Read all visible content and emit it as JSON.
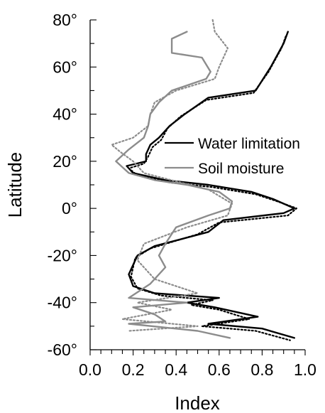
{
  "chart_data": {
    "type": "line",
    "orientation": "vertical-profile",
    "xlabel": "Index",
    "ylabel": "Latitude",
    "xlim": [
      0,
      1
    ],
    "ylim": [
      -60,
      80
    ],
    "x_ticks": [
      0.0,
      0.2,
      0.4,
      0.6,
      0.8,
      1.0
    ],
    "x_tick_labels": [
      "0.0",
      "0.2",
      "0.4",
      "0.6",
      "0.8",
      "1.0"
    ],
    "y_ticks": [
      80,
      60,
      40,
      20,
      0,
      -20,
      -40,
      -60
    ],
    "y_tick_labels": [
      "80°",
      "60°",
      "40°",
      "20°",
      "0°",
      "-20°",
      "-40°",
      "-60°"
    ],
    "grid": false,
    "legend": {
      "position": "middle",
      "entries": [
        "Water limitation",
        "Soil moisture"
      ]
    },
    "series": [
      {
        "name": "Water limitation",
        "color": "#000000",
        "dash": "solid",
        "points": [
          [
            0.92,
            75
          ],
          [
            0.9,
            70
          ],
          [
            0.84,
            60
          ],
          [
            0.77,
            50
          ],
          [
            0.55,
            47
          ],
          [
            0.44,
            40
          ],
          [
            0.37,
            35
          ],
          [
            0.32,
            30
          ],
          [
            0.28,
            27
          ],
          [
            0.26,
            23
          ],
          [
            0.26,
            20
          ],
          [
            0.17,
            18
          ],
          [
            0.2,
            15
          ],
          [
            0.35,
            12
          ],
          [
            0.55,
            10
          ],
          [
            0.75,
            7
          ],
          [
            0.85,
            4
          ],
          [
            0.95,
            0
          ],
          [
            0.9,
            -2
          ],
          [
            0.62,
            -5
          ],
          [
            0.55,
            -10
          ],
          [
            0.3,
            -16
          ],
          [
            0.22,
            -20
          ],
          [
            0.18,
            -28
          ],
          [
            0.2,
            -33
          ],
          [
            0.3,
            -36
          ],
          [
            0.6,
            -38
          ],
          [
            0.45,
            -40
          ],
          [
            0.58,
            -42
          ],
          [
            0.78,
            -46
          ],
          [
            0.55,
            -49
          ],
          [
            0.8,
            -51
          ],
          [
            0.95,
            -55
          ]
        ]
      },
      {
        "name": "Water limitation (dotted)",
        "color": "#000000",
        "dash": "dotted",
        "points": [
          [
            0.91,
            73
          ],
          [
            0.89,
            68
          ],
          [
            0.83,
            58
          ],
          [
            0.76,
            49
          ],
          [
            0.54,
            46
          ],
          [
            0.42,
            39
          ],
          [
            0.36,
            34
          ],
          [
            0.33,
            29
          ],
          [
            0.29,
            26
          ],
          [
            0.27,
            22
          ],
          [
            0.25,
            19
          ],
          [
            0.18,
            17
          ],
          [
            0.22,
            14
          ],
          [
            0.37,
            11
          ],
          [
            0.57,
            9
          ],
          [
            0.77,
            6
          ],
          [
            0.87,
            3
          ],
          [
            0.96,
            0
          ],
          [
            0.92,
            -3
          ],
          [
            0.6,
            -6
          ],
          [
            0.5,
            -11
          ],
          [
            0.28,
            -17
          ],
          [
            0.21,
            -21
          ],
          [
            0.19,
            -29
          ],
          [
            0.22,
            -34
          ],
          [
            0.33,
            -37
          ],
          [
            0.57,
            -39
          ],
          [
            0.47,
            -41
          ],
          [
            0.6,
            -43
          ],
          [
            0.74,
            -47
          ],
          [
            0.52,
            -50
          ],
          [
            0.77,
            -52
          ],
          [
            0.93,
            -56
          ]
        ]
      },
      {
        "name": "Soil moisture",
        "color": "#8c8c8c",
        "dash": "solid",
        "points": [
          [
            0.45,
            75
          ],
          [
            0.38,
            72
          ],
          [
            0.38,
            66
          ],
          [
            0.52,
            64
          ],
          [
            0.56,
            58
          ],
          [
            0.54,
            55
          ],
          [
            0.38,
            50
          ],
          [
            0.32,
            45
          ],
          [
            0.28,
            40
          ],
          [
            0.27,
            35
          ],
          [
            0.25,
            30
          ],
          [
            0.18,
            25
          ],
          [
            0.12,
            20
          ],
          [
            0.18,
            15
          ],
          [
            0.3,
            12
          ],
          [
            0.45,
            10
          ],
          [
            0.6,
            7
          ],
          [
            0.66,
            3
          ],
          [
            0.65,
            0
          ],
          [
            0.55,
            -3
          ],
          [
            0.4,
            -8
          ],
          [
            0.35,
            -15
          ],
          [
            0.32,
            -20
          ],
          [
            0.35,
            -25
          ],
          [
            0.28,
            -32
          ],
          [
            0.18,
            -38
          ],
          [
            0.45,
            -40
          ],
          [
            0.2,
            -42
          ],
          [
            0.3,
            -45
          ],
          [
            0.35,
            -48
          ],
          [
            0.18,
            -49
          ],
          [
            0.5,
            -52
          ],
          [
            0.65,
            -55
          ]
        ]
      },
      {
        "name": "Soil moisture (dotted)",
        "color": "#8c8c8c",
        "dash": "dotted",
        "points": [
          [
            0.57,
            80
          ],
          [
            0.58,
            75
          ],
          [
            0.64,
            68
          ],
          [
            0.6,
            60
          ],
          [
            0.58,
            55
          ],
          [
            0.4,
            50
          ],
          [
            0.3,
            45
          ],
          [
            0.28,
            40
          ],
          [
            0.27,
            35
          ],
          [
            0.2,
            30
          ],
          [
            0.1,
            27
          ],
          [
            0.14,
            24
          ],
          [
            0.2,
            20
          ],
          [
            0.25,
            15
          ],
          [
            0.42,
            11
          ],
          [
            0.55,
            8
          ],
          [
            0.66,
            2
          ],
          [
            0.64,
            -3
          ],
          [
            0.45,
            -8
          ],
          [
            0.25,
            -15
          ],
          [
            0.22,
            -22
          ],
          [
            0.3,
            -30
          ],
          [
            0.5,
            -36
          ],
          [
            0.22,
            -40
          ],
          [
            0.38,
            -43
          ],
          [
            0.15,
            -47
          ],
          [
            0.5,
            -50
          ],
          [
            0.18,
            -52
          ]
        ]
      }
    ]
  }
}
